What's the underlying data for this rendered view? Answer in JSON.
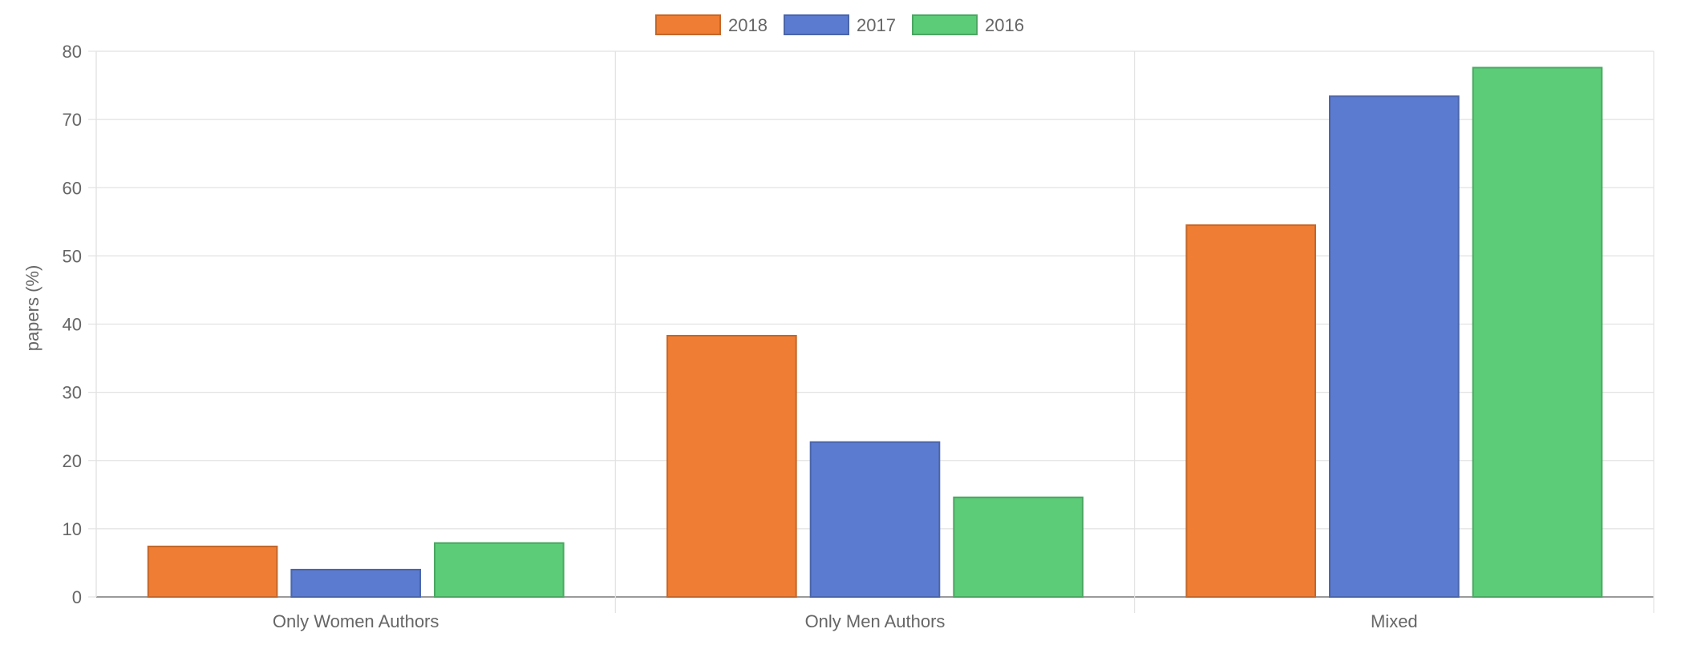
{
  "chart_data": {
    "type": "bar",
    "categories": [
      "Only Women Authors",
      "Only Men Authors",
      "Mixed"
    ],
    "series": [
      {
        "name": "2018",
        "values": [
          7.4,
          38.3,
          54.5
        ],
        "color": "#ef7d33"
      },
      {
        "name": "2017",
        "values": [
          4.0,
          22.7,
          73.4
        ],
        "color": "#5b7bd0"
      },
      {
        "name": "2016",
        "values": [
          7.9,
          14.6,
          77.6
        ],
        "color": "#5ccc78"
      }
    ],
    "title": "",
    "xlabel": "",
    "ylabel": "papers (%)",
    "ylim": [
      0,
      80
    ],
    "yticks": [
      0,
      10,
      20,
      30,
      40,
      50,
      60,
      70,
      80
    ],
    "grid": true,
    "legend_position": "top-center"
  }
}
